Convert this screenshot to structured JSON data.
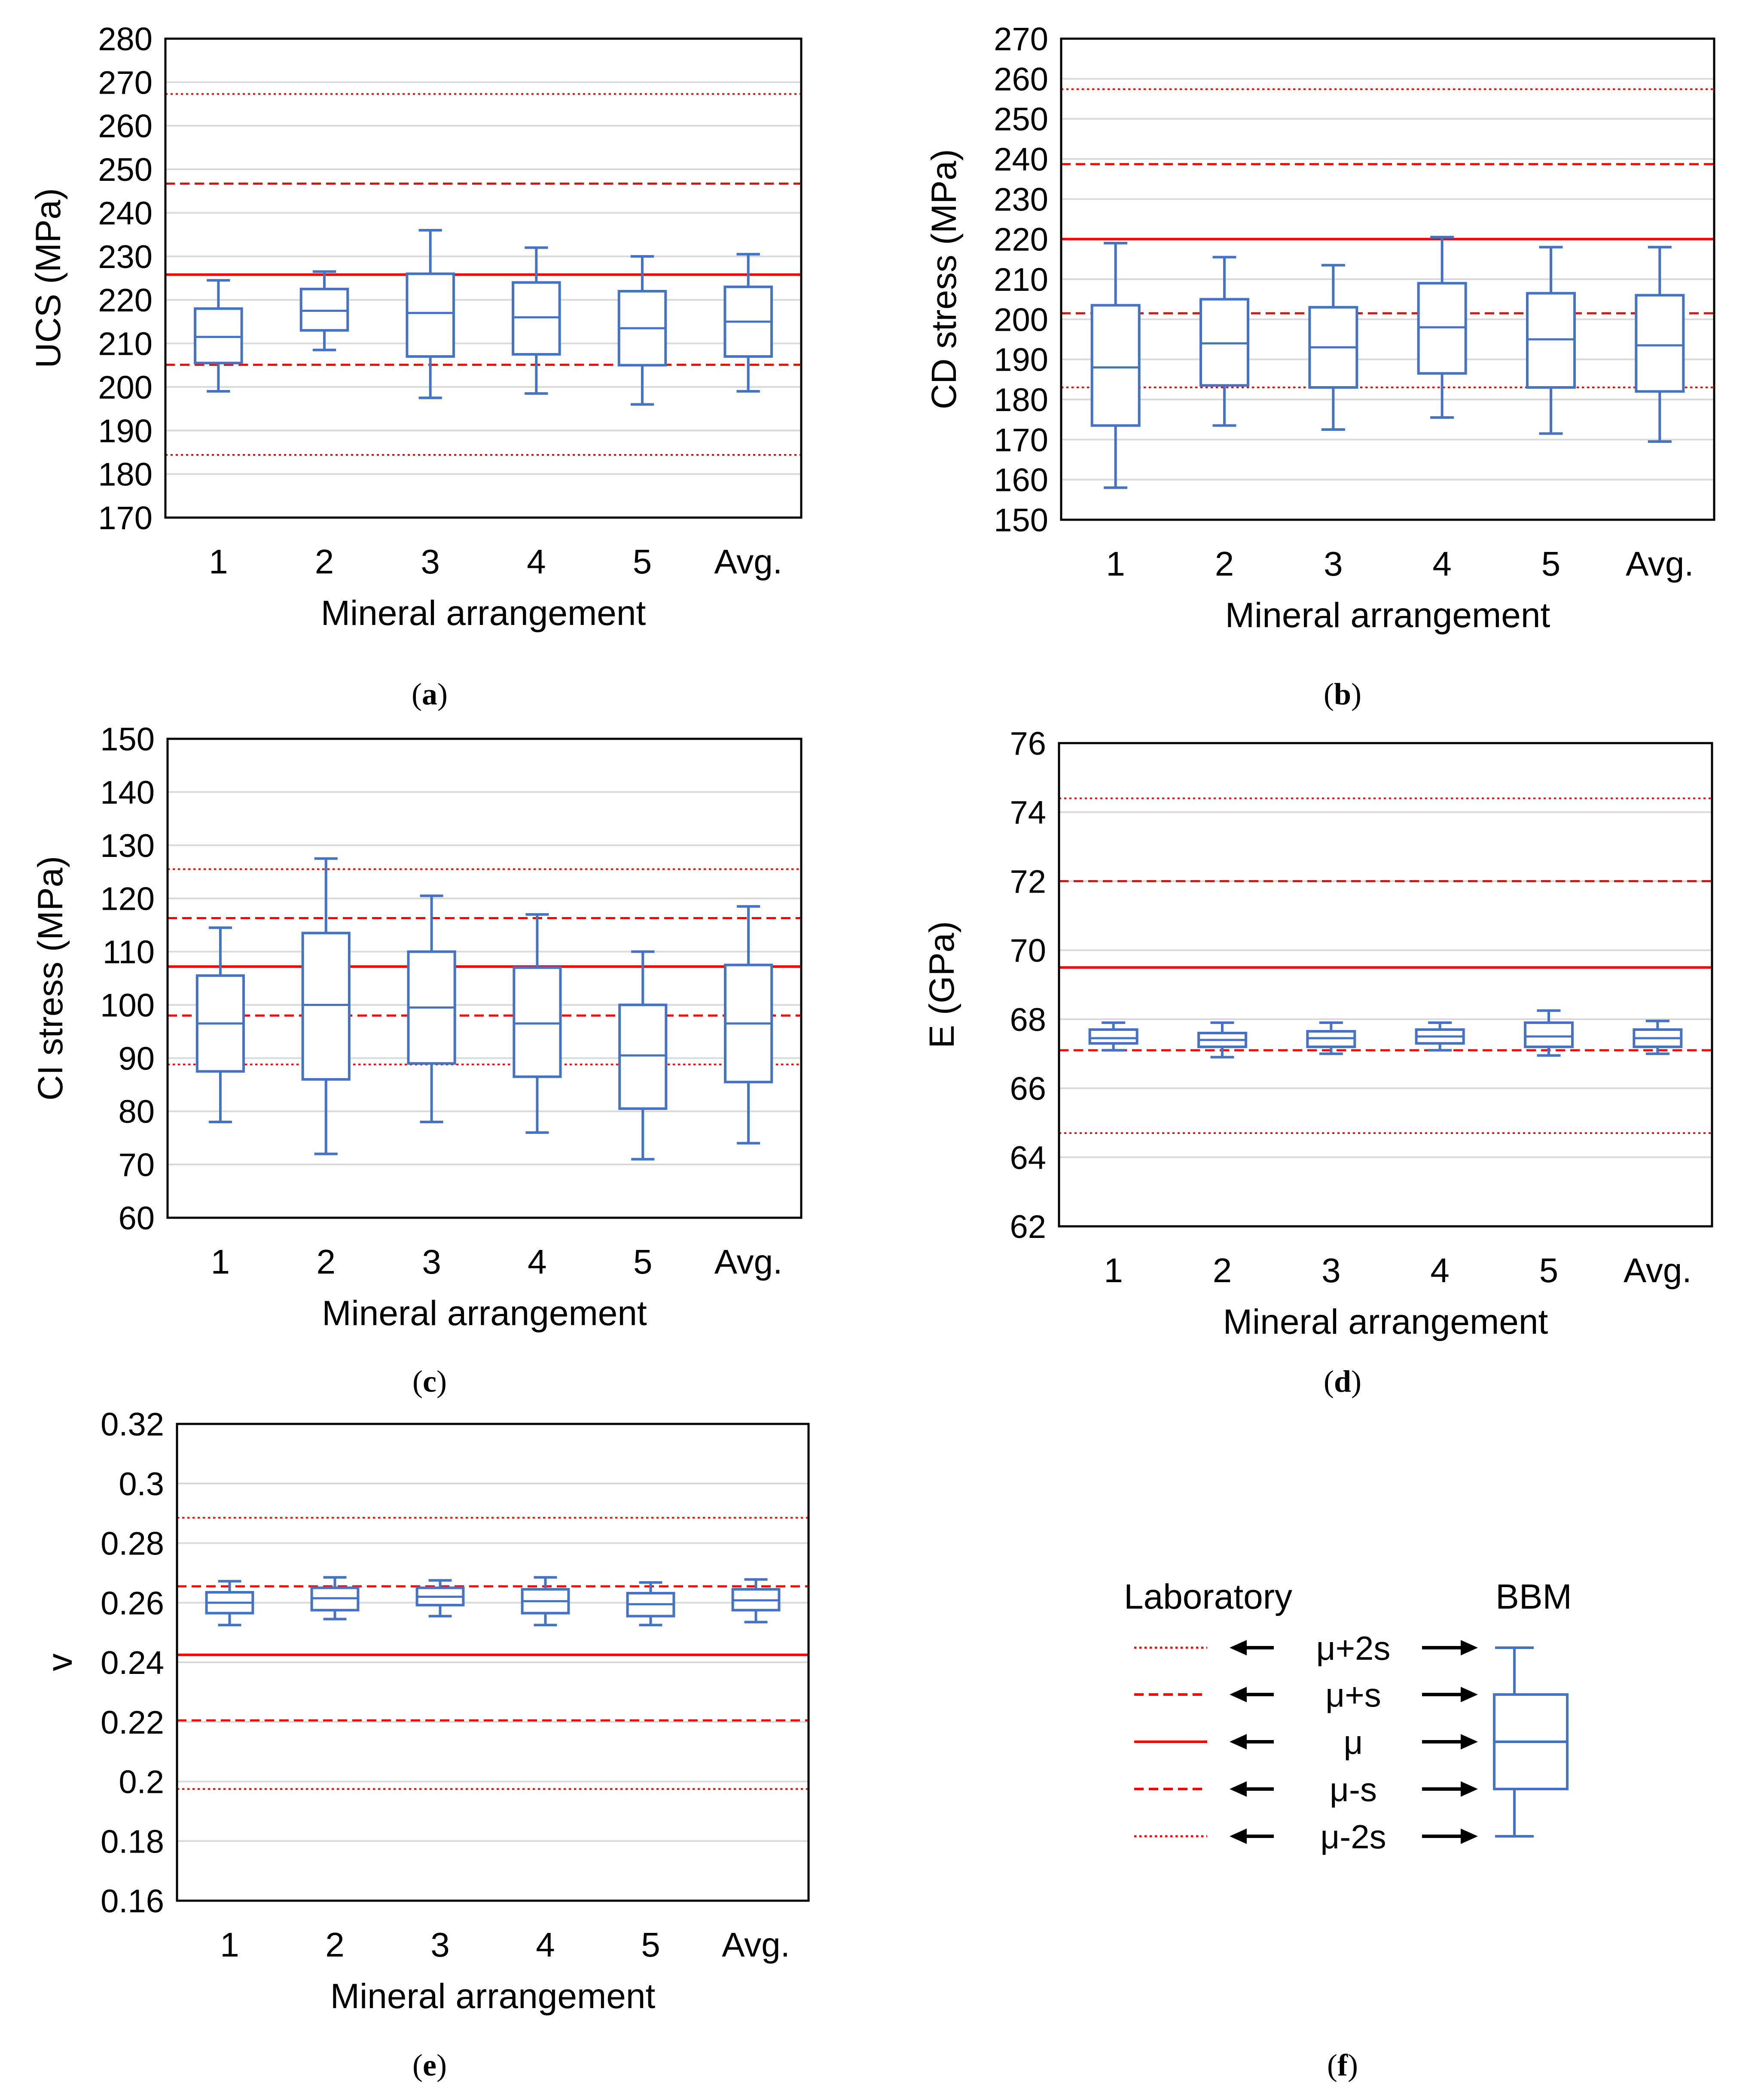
{
  "colors": {
    "box": "#4472C4",
    "laboratory": "#FF0000",
    "gridline": "#D9D9D9",
    "axis": "#000000"
  },
  "legend": {
    "laboratory_title": "Laboratory",
    "bbm_title": "BBM",
    "entries": [
      {
        "label": "μ+2s",
        "style": "dotted"
      },
      {
        "label": "μ+s",
        "style": "dashed"
      },
      {
        "label": "μ",
        "style": "solid"
      },
      {
        "label": "μ-s",
        "style": "dashed"
      },
      {
        "label": "μ-2s",
        "style": "dotted"
      }
    ]
  },
  "panel_labels": {
    "a": {
      "open": "(",
      "letter": "a",
      "close": ")"
    },
    "b": {
      "open": "(",
      "letter": "b",
      "close": ")"
    },
    "c": {
      "open": "(",
      "letter": "c",
      "close": ")"
    },
    "d": {
      "open": "(",
      "letter": "d",
      "close": ")"
    },
    "e": {
      "open": "(",
      "letter": "e",
      "close": ")"
    },
    "f": {
      "open": "(",
      "letter": "f",
      "close": ")"
    }
  },
  "chart_data": [
    {
      "id": "a",
      "type": "box",
      "title": "",
      "xlabel": "Mineral arrangement",
      "ylabel": "UCS (MPa)",
      "categories": [
        "1",
        "2",
        "3",
        "4",
        "5",
        "Avg."
      ],
      "ylim": [
        170,
        280
      ],
      "yticks": [
        170,
        180,
        190,
        200,
        210,
        220,
        230,
        240,
        250,
        260,
        270,
        280
      ],
      "ytick_labels": [
        "170",
        "180",
        "190",
        "200",
        "210",
        "220",
        "230",
        "240",
        "250",
        "260",
        "270",
        "280"
      ],
      "grid": true,
      "boxes": [
        {
          "min": 199,
          "q1": 205.5,
          "median": 211.5,
          "q3": 218,
          "max": 224.5
        },
        {
          "min": 208.5,
          "q1": 213,
          "median": 217.5,
          "q3": 222.5,
          "max": 226.5
        },
        {
          "min": 197.5,
          "q1": 207,
          "median": 217,
          "q3": 226,
          "max": 236
        },
        {
          "min": 198.5,
          "q1": 207.5,
          "median": 216,
          "q3": 224,
          "max": 232
        },
        {
          "min": 196,
          "q1": 205,
          "median": 213.5,
          "q3": 222,
          "max": 230
        },
        {
          "min": 199,
          "q1": 207,
          "median": 215,
          "q3": 223,
          "max": 230.5
        }
      ],
      "reference_lines": [
        {
          "label": "μ+2s",
          "value": 267.3,
          "style": "dotted"
        },
        {
          "label": "μ+s",
          "value": 246.7,
          "style": "dashed"
        },
        {
          "label": "μ",
          "value": 225.8,
          "style": "solid"
        },
        {
          "label": "μ-s",
          "value": 205.1,
          "style": "dashed"
        },
        {
          "label": "μ-2s",
          "value": 184.4,
          "style": "dotted"
        }
      ]
    },
    {
      "id": "b",
      "type": "box",
      "title": "",
      "xlabel": "Mineral arrangement",
      "ylabel": "CD stress (MPa)",
      "categories": [
        "1",
        "2",
        "3",
        "4",
        "5",
        "Avg."
      ],
      "ylim": [
        150,
        270
      ],
      "yticks": [
        150,
        160,
        170,
        180,
        190,
        200,
        210,
        220,
        230,
        240,
        250,
        260,
        270
      ],
      "ytick_labels": [
        "150",
        "160",
        "170",
        "180",
        "190",
        "200",
        "210",
        "220",
        "230",
        "240",
        "250",
        "260",
        "270"
      ],
      "grid": true,
      "boxes": [
        {
          "min": 158,
          "q1": 173.5,
          "median": 188,
          "q3": 203.5,
          "max": 219
        },
        {
          "min": 173.5,
          "q1": 183.5,
          "median": 194,
          "q3": 205,
          "max": 215.5
        },
        {
          "min": 172.5,
          "q1": 183,
          "median": 193,
          "q3": 203,
          "max": 213.5
        },
        {
          "min": 175.5,
          "q1": 186.5,
          "median": 198,
          "q3": 209,
          "max": 220.5
        },
        {
          "min": 171.5,
          "q1": 183,
          "median": 195,
          "q3": 206.5,
          "max": 218
        },
        {
          "min": 169.5,
          "q1": 182,
          "median": 193.5,
          "q3": 206,
          "max": 218
        }
      ],
      "reference_lines": [
        {
          "label": "μ+2s",
          "value": 257.4,
          "style": "dotted"
        },
        {
          "label": "μ+s",
          "value": 238.7,
          "style": "dashed"
        },
        {
          "label": "μ",
          "value": 220,
          "style": "solid"
        },
        {
          "label": "μ-s",
          "value": 201.5,
          "style": "dashed"
        },
        {
          "label": "μ-2s",
          "value": 183,
          "style": "dotted"
        }
      ]
    },
    {
      "id": "c",
      "type": "box",
      "title": "",
      "xlabel": "Mineral arrangement",
      "ylabel": "CI stress (MPa)",
      "categories": [
        "1",
        "2",
        "3",
        "4",
        "5",
        "Avg."
      ],
      "ylim": [
        60,
        150
      ],
      "yticks": [
        60,
        70,
        80,
        90,
        100,
        110,
        120,
        130,
        140,
        150
      ],
      "ytick_labels": [
        "60",
        "70",
        "80",
        "90",
        "100",
        "110",
        "120",
        "130",
        "140",
        "150"
      ],
      "grid": true,
      "boxes": [
        {
          "min": 78,
          "q1": 87.5,
          "median": 96.5,
          "q3": 105.5,
          "max": 114.5
        },
        {
          "min": 72,
          "q1": 86,
          "median": 100,
          "q3": 113.5,
          "max": 127.5
        },
        {
          "min": 78,
          "q1": 89,
          "median": 99.5,
          "q3": 110,
          "max": 120.5
        },
        {
          "min": 76,
          "q1": 86.5,
          "median": 96.5,
          "q3": 107,
          "max": 117
        },
        {
          "min": 71,
          "q1": 80.5,
          "median": 90.5,
          "q3": 100,
          "max": 110
        },
        {
          "min": 74,
          "q1": 85.5,
          "median": 96.5,
          "q3": 107.5,
          "max": 118.5
        }
      ],
      "reference_lines": [
        {
          "label": "μ+2s",
          "value": 125.5,
          "style": "dotted"
        },
        {
          "label": "μ+s",
          "value": 116.3,
          "style": "dashed"
        },
        {
          "label": "μ",
          "value": 107.2,
          "style": "solid"
        },
        {
          "label": "μ-s",
          "value": 98,
          "style": "dashed"
        },
        {
          "label": "μ-2s",
          "value": 88.8,
          "style": "dotted"
        }
      ]
    },
    {
      "id": "d",
      "type": "box",
      "title": "",
      "xlabel": "Mineral arrangement",
      "ylabel": "E (GPa)",
      "categories": [
        "1",
        "2",
        "3",
        "4",
        "5",
        "Avg."
      ],
      "ylim": [
        62,
        76
      ],
      "yticks": [
        62,
        64,
        66,
        68,
        70,
        72,
        74,
        76
      ],
      "ytick_labels": [
        "62",
        "64",
        "66",
        "68",
        "70",
        "72",
        "74",
        "76"
      ],
      "grid": true,
      "boxes": [
        {
          "min": 67.1,
          "q1": 67.3,
          "median": 67.45,
          "q3": 67.7,
          "max": 67.9
        },
        {
          "min": 66.9,
          "q1": 67.2,
          "median": 67.4,
          "q3": 67.6,
          "max": 67.9
        },
        {
          "min": 67.0,
          "q1": 67.2,
          "median": 67.45,
          "q3": 67.65,
          "max": 67.9
        },
        {
          "min": 67.1,
          "q1": 67.3,
          "median": 67.5,
          "q3": 67.7,
          "max": 67.9
        },
        {
          "min": 66.95,
          "q1": 67.2,
          "median": 67.5,
          "q3": 67.9,
          "max": 68.25
        },
        {
          "min": 67.0,
          "q1": 67.2,
          "median": 67.45,
          "q3": 67.7,
          "max": 67.95
        }
      ],
      "reference_lines": [
        {
          "label": "μ+2s",
          "value": 74.4,
          "style": "dotted"
        },
        {
          "label": "μ+s",
          "value": 72,
          "style": "dashed"
        },
        {
          "label": "μ",
          "value": 69.5,
          "style": "solid"
        },
        {
          "label": "μ-s",
          "value": 67.1,
          "style": "dashed"
        },
        {
          "label": "μ-2s",
          "value": 64.7,
          "style": "dotted"
        }
      ]
    },
    {
      "id": "e",
      "type": "box",
      "title": "",
      "xlabel": "Mineral arrangement",
      "ylabel": "v",
      "categories": [
        "1",
        "2",
        "3",
        "4",
        "5",
        "Avg."
      ],
      "ylim": [
        0.16,
        0.32
      ],
      "yticks": [
        0.16,
        0.18,
        0.2,
        0.22,
        0.24,
        0.26,
        0.28,
        0.3,
        0.32
      ],
      "ytick_labels": [
        "0.16",
        "0.18",
        "0.2",
        "0.22",
        "0.24",
        "0.26",
        "0.28",
        "0.3",
        "0.32"
      ],
      "grid": true,
      "boxes": [
        {
          "min": 0.2525,
          "q1": 0.2565,
          "median": 0.26,
          "q3": 0.2635,
          "max": 0.2672
        },
        {
          "min": 0.2545,
          "q1": 0.2575,
          "median": 0.2615,
          "q3": 0.265,
          "max": 0.2685
        },
        {
          "min": 0.2555,
          "q1": 0.2592,
          "median": 0.262,
          "q3": 0.265,
          "max": 0.2675
        },
        {
          "min": 0.2525,
          "q1": 0.2565,
          "median": 0.2605,
          "q3": 0.2645,
          "max": 0.2685
        },
        {
          "min": 0.2525,
          "q1": 0.2555,
          "median": 0.2595,
          "q3": 0.2632,
          "max": 0.2668
        },
        {
          "min": 0.2535,
          "q1": 0.2575,
          "median": 0.2608,
          "q3": 0.2645,
          "max": 0.2678
        }
      ],
      "reference_lines": [
        {
          "label": "μ+2s",
          "value": 0.2885,
          "style": "dotted"
        },
        {
          "label": "μ+s",
          "value": 0.2655,
          "style": "dashed"
        },
        {
          "label": "μ",
          "value": 0.2425,
          "style": "solid"
        },
        {
          "label": "μ-s",
          "value": 0.2205,
          "style": "dashed"
        },
        {
          "label": "μ-2s",
          "value": 0.1975,
          "style": "dotted"
        }
      ]
    }
  ]
}
